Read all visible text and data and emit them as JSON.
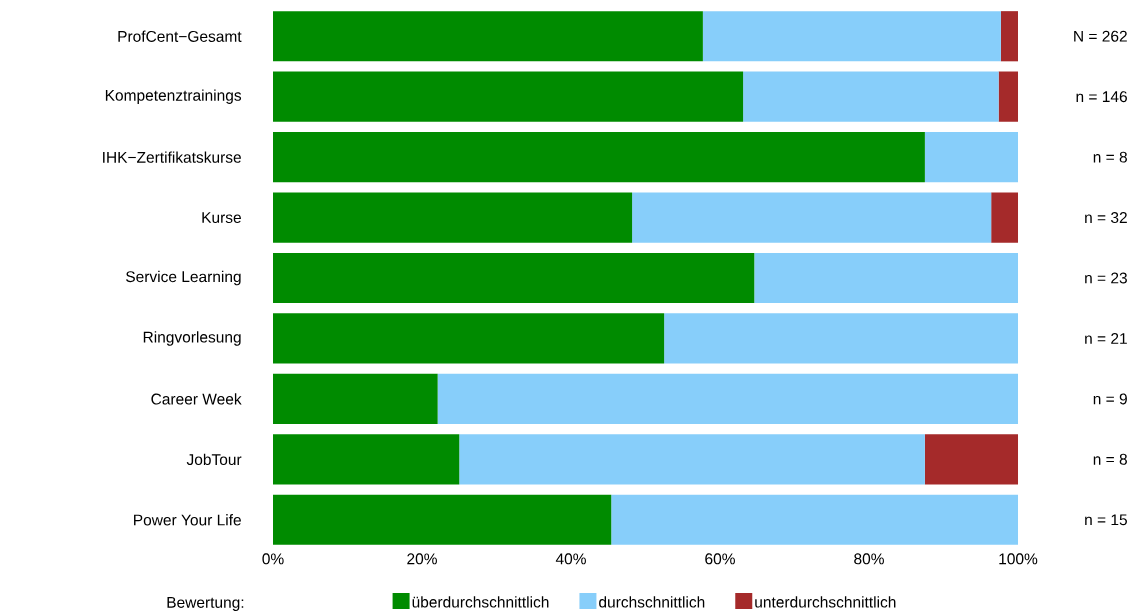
{
  "chart_data": {
    "type": "bar",
    "orientation": "horizontal",
    "stacked": true,
    "categories": [
      "ProfCent−Gesamt",
      "Kompetenztrainings",
      "IHK−Zertifikatskurse",
      "Kurse",
      "Service Learning",
      "Ringvorlesung",
      "Career Week",
      "JobTour",
      "Power Your Life"
    ],
    "series": [
      {
        "name": "überdurchschnittlich",
        "color": "#008b00",
        "values": [
          57.7,
          63.1,
          87.5,
          48.2,
          64.6,
          52.5,
          22.1,
          25.0,
          45.4
        ]
      },
      {
        "name": "durchschnittlich",
        "color": "#87cefa",
        "values": [
          40.0,
          34.3,
          12.5,
          48.2,
          35.4,
          47.5,
          77.9,
          62.5,
          54.6
        ]
      },
      {
        "name": "unterdurchschnittlich",
        "color": "#a52a2a",
        "values": [
          2.3,
          2.6,
          0,
          3.6,
          0,
          0,
          0,
          12.5,
          0
        ]
      }
    ],
    "xlim": [
      0,
      100
    ],
    "xticks": [
      {
        "value": 0,
        "label": "0%"
      },
      {
        "value": 20,
        "label": "20%"
      },
      {
        "value": 40,
        "label": "40%"
      },
      {
        "value": 60,
        "label": "60%"
      },
      {
        "value": 80,
        "label": "80%"
      },
      {
        "value": 100,
        "label": "100%"
      }
    ],
    "legend": "bottom",
    "legend_title": "Bewertung:",
    "annotations": [
      "N = 262",
      "n = 146",
      "n = 8",
      "n = 32",
      "n = 23",
      "n = 21",
      "n = 9",
      "n = 8",
      "n = 15"
    ]
  }
}
